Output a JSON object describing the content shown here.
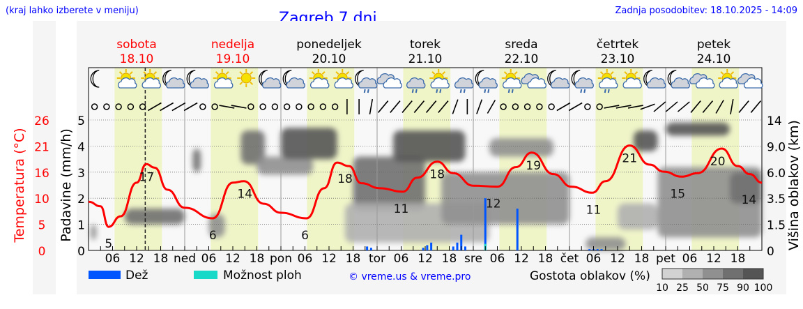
{
  "header": {
    "left_note": "(kraj lahko izberete v meniju)",
    "title": "Zagreb 7 dni",
    "updated": "Zadnja posodobitev: 18.10.2025 - 14:09"
  },
  "colors": {
    "temperature": "#ff0000",
    "rain": "#0055ff",
    "showers": "#18d8c8",
    "daylight": "#f0f5c8",
    "link": "#0000ff"
  },
  "days": [
    {
      "name": "sobota",
      "date": "18.10",
      "weekend": true
    },
    {
      "name": "nedelja",
      "date": "19.10",
      "weekend": true
    },
    {
      "name": "ponedeljek",
      "date": "20.10",
      "weekend": false
    },
    {
      "name": "torek",
      "date": "21.10",
      "weekend": false
    },
    {
      "name": "sreda",
      "date": "22.10",
      "weekend": false
    },
    {
      "name": "četrtek",
      "date": "23.10",
      "weekend": false
    },
    {
      "name": "petek",
      "date": "24.10",
      "weekend": false
    }
  ],
  "icons": [
    "moon",
    "sun-cloud",
    "sun-cloud",
    "moon-cloud",
    "moon-cloud",
    "sun-cloud",
    "sun",
    "moon-cloud",
    "moon-cloud",
    "sun-cloud",
    "sun-cloud",
    "moon-cloud-rain",
    "clouds",
    "cloud-rain",
    "sun-cloud-rain",
    "cloud-rain",
    "moon-cloud-rain",
    "sun-cloud-rain",
    "clouds",
    "moon-cloud",
    "moon-cloud-rain",
    "sun-cloud-rain",
    "sun-cloud",
    "moon-cloud",
    "moon-cloud",
    "clouds",
    "sun-cloud",
    "clouds"
  ],
  "wind": [
    null,
    null,
    null,
    null,
    null,
    60,
    60,
    60,
    60,
    null,
    null,
    100,
    100,
    null,
    null,
    null,
    null,
    null,
    null,
    null,
    null,
    0,
    0,
    10,
    40,
    40,
    40,
    40,
    40,
    40,
    20,
    0,
    20,
    30,
    null,
    null,
    null,
    null,
    null,
    60,
    60,
    null,
    null,
    80,
    80,
    80,
    70,
    50,
    50,
    50,
    40,
    40,
    30,
    10,
    40,
    40
  ],
  "chart_data": {
    "type": "line",
    "title": "Zagreb 7 dni",
    "x_unit": "hours from 18.10 00:00",
    "x_tick_labels": [
      "06",
      "12",
      "18",
      "ned",
      "06",
      "12",
      "18",
      "pon",
      "06",
      "12",
      "18",
      "tor",
      "06",
      "12",
      "18",
      "sre",
      "06",
      "12",
      "18",
      "čet",
      "06",
      "12",
      "18",
      "pet",
      "06",
      "12",
      "18"
    ],
    "now_hour": 14.15,
    "daylight": [
      [
        6.5,
        18.3
      ]
    ],
    "left_axis_temp": {
      "label": "Temperatura (°C)",
      "ticks": [
        0,
        5,
        10,
        16,
        21,
        26
      ]
    },
    "left_axis_precip": {
      "label": "Padavine (mm/h)",
      "ticks": [
        0,
        1,
        2,
        3,
        4,
        5
      ],
      "ylim": [
        0,
        5
      ]
    },
    "right_axis": {
      "label": "Višina oblakov (km)",
      "ticks": [
        "0",
        "1.5",
        "3.5",
        "6.0",
        "9.0",
        "14"
      ]
    },
    "grid": true,
    "temperature": {
      "x": [
        0,
        3,
        5,
        8,
        12,
        14.4,
        16.5,
        19.7,
        24,
        31,
        36,
        38.8,
        43.7,
        48,
        54.4,
        58.8,
        62,
        65,
        68,
        72.7,
        78.4,
        82,
        87,
        91,
        96,
        102,
        106.6,
        110.6,
        116,
        120.5,
        125.7,
        129,
        135,
        140,
        143.5,
        148,
        152,
        158,
        162,
        165,
        168
      ],
      "y": [
        9.7,
        8.8,
        4.7,
        6.8,
        13.5,
        17.2,
        16.5,
        12.1,
        8.5,
        6.4,
        13.5,
        13.8,
        9.3,
        7.5,
        6.4,
        12.4,
        17.5,
        16.8,
        13.4,
        12.4,
        11.7,
        14.5,
        17.7,
        15.4,
        12.9,
        12.7,
        16.6,
        19.5,
        15.2,
        12.7,
        11.5,
        13.8,
        20.9,
        17.1,
        15.7,
        14.7,
        15.4,
        20.3,
        16.8,
        15.2,
        13.5
      ]
    },
    "temp_labels": [
      {
        "x": 5,
        "v": "5"
      },
      {
        "x": 14.5,
        "v": "17"
      },
      {
        "x": 31,
        "v": "6"
      },
      {
        "x": 39,
        "v": "14"
      },
      {
        "x": 54,
        "v": "6"
      },
      {
        "x": 64,
        "v": "18"
      },
      {
        "x": 78,
        "v": "11"
      },
      {
        "x": 87,
        "v": "18"
      },
      {
        "x": 101,
        "v": "12"
      },
      {
        "x": 111,
        "v": "19"
      },
      {
        "x": 126,
        "v": "11"
      },
      {
        "x": 135,
        "v": "21"
      },
      {
        "x": 147,
        "v": "15"
      },
      {
        "x": 157,
        "v": "20"
      },
      {
        "x": 167,
        "v": "14"
      }
    ],
    "precip_rain": {
      "x": [
        69.5,
        70.5,
        83.5,
        84.5,
        85.5,
        91,
        92,
        93,
        94,
        99,
        107,
        125,
        126,
        127,
        128
      ],
      "y": [
        0.15,
        0.1,
        0.1,
        0.2,
        0.3,
        0.15,
        0.3,
        0.6,
        0.15,
        2.0,
        1.6,
        0.05,
        0.05,
        0.05,
        0.05
      ]
    },
    "precip_showers": {
      "x": [
        99
      ],
      "y": [
        0.25
      ]
    },
    "cloud_density": [
      {
        "h0": 0.5,
        "h1": 2,
        "z0": 0.4,
        "z1": 1.0,
        "d": 50
      },
      {
        "h0": 9,
        "h1": 24,
        "z0": 1.0,
        "z1": 1.6,
        "d": 75
      },
      {
        "h0": 26,
        "h1": 28,
        "z0": 3.0,
        "z1": 3.9,
        "d": 75
      },
      {
        "h0": 30,
        "h1": 34,
        "z0": 0.5,
        "z1": 1.4,
        "d": 50
      },
      {
        "h0": 38,
        "h1": 44,
        "z0": 3.3,
        "z1": 4.6,
        "d": 75
      },
      {
        "h0": 42,
        "h1": 56,
        "z0": 2.9,
        "z1": 3.6,
        "d": 50
      },
      {
        "h0": 48,
        "h1": 62,
        "z0": 3.5,
        "z1": 4.7,
        "d": 90
      },
      {
        "h0": 66,
        "h1": 84,
        "z0": 1.5,
        "z1": 3.6,
        "d": 75
      },
      {
        "h0": 64,
        "h1": 100,
        "z0": 0.3,
        "z1": 1.8,
        "d": 25
      },
      {
        "h0": 76,
        "h1": 94,
        "z0": 3.4,
        "z1": 4.6,
        "d": 90
      },
      {
        "h0": 88,
        "h1": 120,
        "z0": 1.0,
        "z1": 3.0,
        "d": 50
      },
      {
        "h0": 100,
        "h1": 116,
        "z0": 3.6,
        "z1": 4.3,
        "d": 50
      },
      {
        "h0": 124,
        "h1": 134,
        "z0": 0,
        "z1": 0.5,
        "d": 50
      },
      {
        "h0": 132,
        "h1": 142,
        "z0": 0.8,
        "z1": 1.8,
        "d": 25
      },
      {
        "h0": 136,
        "h1": 142,
        "z0": 3.8,
        "z1": 4.6,
        "d": 90
      },
      {
        "h0": 144,
        "h1": 160,
        "z0": 4.4,
        "z1": 4.9,
        "d": 90
      },
      {
        "h0": 142,
        "h1": 168,
        "z0": 0.5,
        "z1": 3.2,
        "d": 50
      },
      {
        "h0": 160,
        "h1": 168,
        "z0": 1.8,
        "z1": 3.0,
        "d": 75
      }
    ]
  },
  "legend": {
    "rain": "Dež",
    "showers": "Možnost ploh",
    "credit": "© vreme.us & vreme.pro",
    "density_title": "Gostota oblakov (%)",
    "density_ticks": [
      "10",
      "25",
      "50",
      "75",
      "90",
      "100"
    ],
    "density_colors": [
      "#d2d2d2",
      "#b0b0b0",
      "#909090",
      "#707070",
      "#555555"
    ]
  }
}
